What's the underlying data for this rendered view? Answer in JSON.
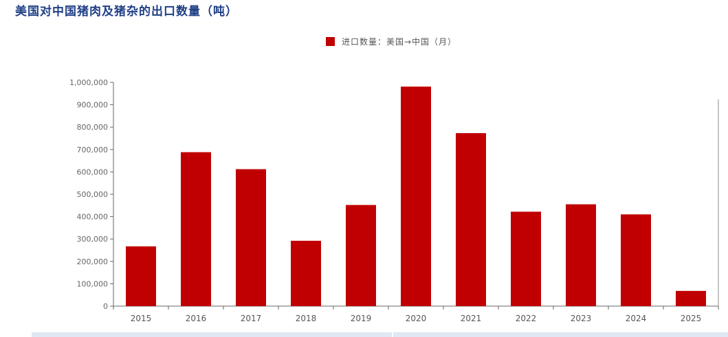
{
  "title": "美国对中国猪肉及猪杂的出口数量（吨）",
  "legend": {
    "label": "进口数量：美国→中国（月）",
    "color": "#c00000"
  },
  "chart_data": {
    "type": "bar",
    "categories": [
      "2015",
      "2016",
      "2017",
      "2018",
      "2019",
      "2020",
      "2021",
      "2022",
      "2023",
      "2024",
      "2025"
    ],
    "series": [
      {
        "name": "进口数量：美国→中国（月）",
        "color": "#c00000",
        "values": [
          267000,
          688000,
          612000,
          292000,
          452000,
          981000,
          773000,
          422000,
          455000,
          410000,
          68000
        ]
      }
    ],
    "y_ticks": [
      "0",
      "100,000",
      "200,000",
      "300,000",
      "400,000",
      "500,000",
      "600,000",
      "700,000",
      "800,000",
      "900,000",
      "1,000,000"
    ],
    "ylim": [
      0,
      1000000
    ],
    "grid": false,
    "legend_position": "top-center"
  }
}
